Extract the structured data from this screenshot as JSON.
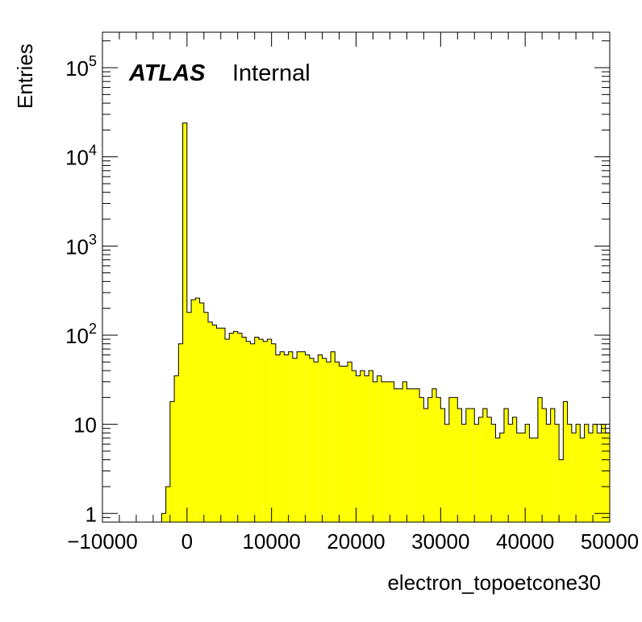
{
  "chart_data": {
    "type": "bar",
    "style": "step-histogram",
    "fill_color": "#ffff00",
    "line_color": "#000000",
    "log_y": true,
    "grid": false,
    "xlabel": "electron_topoetcone30",
    "ylabel": "Entries",
    "xlim": [
      -10000,
      50000
    ],
    "ylim": [
      0.8,
      250000
    ],
    "bin_width": 500,
    "bins_start": -10000,
    "values": [
      0,
      0,
      0,
      0,
      0,
      0,
      0,
      0,
      0,
      0,
      0,
      0,
      0,
      0,
      1,
      2,
      18,
      35,
      80,
      24000,
      180,
      250,
      260,
      230,
      180,
      140,
      130,
      120,
      120,
      90,
      105,
      110,
      105,
      95,
      85,
      80,
      95,
      90,
      85,
      90,
      80,
      60,
      65,
      60,
      65,
      55,
      65,
      65,
      60,
      55,
      50,
      60,
      55,
      50,
      65,
      50,
      45,
      45,
      50,
      40,
      35,
      40,
      35,
      40,
      30,
      35,
      30,
      30,
      30,
      25,
      25,
      30,
      25,
      25,
      25,
      20,
      15,
      20,
      25,
      20,
      15,
      10,
      20,
      20,
      15,
      10,
      15,
      15,
      10,
      12,
      15,
      12,
      10,
      7,
      8,
      15,
      10,
      12,
      8,
      8,
      10,
      7,
      7,
      20,
      15,
      10,
      15,
      10,
      4,
      18,
      10,
      8,
      10,
      7,
      10,
      8,
      10,
      8,
      10,
      8
    ],
    "x_ticks": [
      -10000,
      0,
      10000,
      20000,
      30000,
      40000,
      50000
    ],
    "x_tick_labels": [
      "−10000",
      "0",
      "10000",
      "20000",
      "30000",
      "40000",
      "50000"
    ],
    "y_ticks": [
      {
        "value": 1,
        "base": "1",
        "exp": ""
      },
      {
        "value": 10,
        "base": "10",
        "exp": ""
      },
      {
        "value": 100,
        "base": "10",
        "exp": "2"
      },
      {
        "value": 1000,
        "base": "10",
        "exp": "3"
      },
      {
        "value": 10000,
        "base": "10",
        "exp": "4"
      },
      {
        "value": 100000,
        "base": "10",
        "exp": "5"
      }
    ],
    "annotation": {
      "bold": "ATLAS",
      "text": "Internal"
    }
  }
}
